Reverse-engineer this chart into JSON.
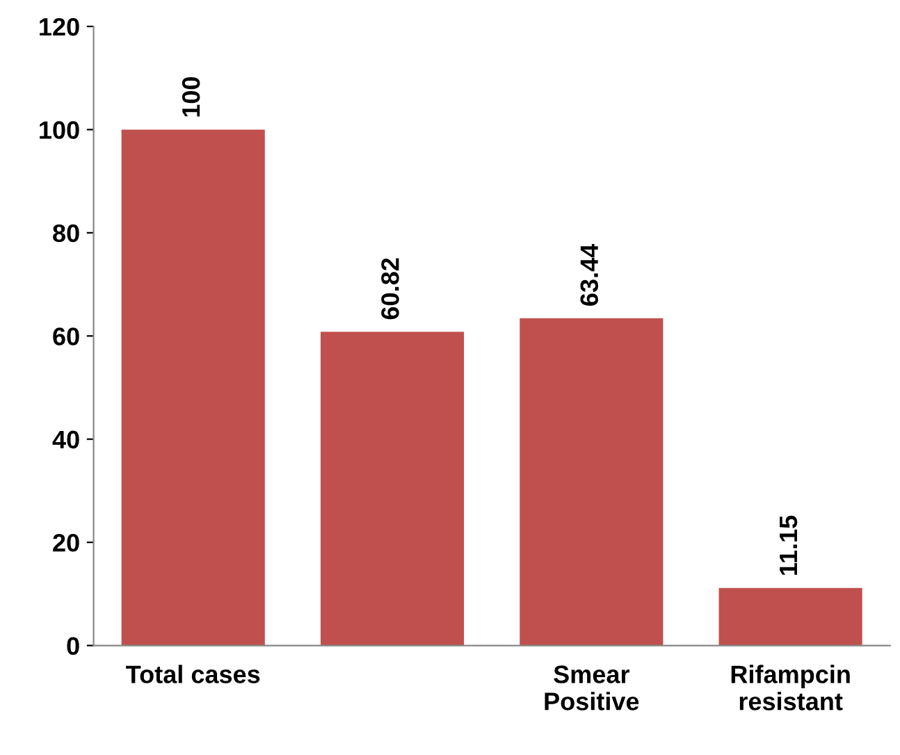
{
  "chart_data": {
    "type": "bar",
    "categories": [
      "Total cases",
      null,
      "Smear\nPositive",
      "Rifampcin\nresistant"
    ],
    "values": [
      100,
      60.82,
      63.44,
      11.15
    ],
    "color": "#c0504d",
    "ylim": [
      0,
      120
    ],
    "yticks": [
      0,
      20,
      40,
      60,
      80,
      100,
      120
    ],
    "data_labels": true,
    "grid": false,
    "legend": false
  }
}
